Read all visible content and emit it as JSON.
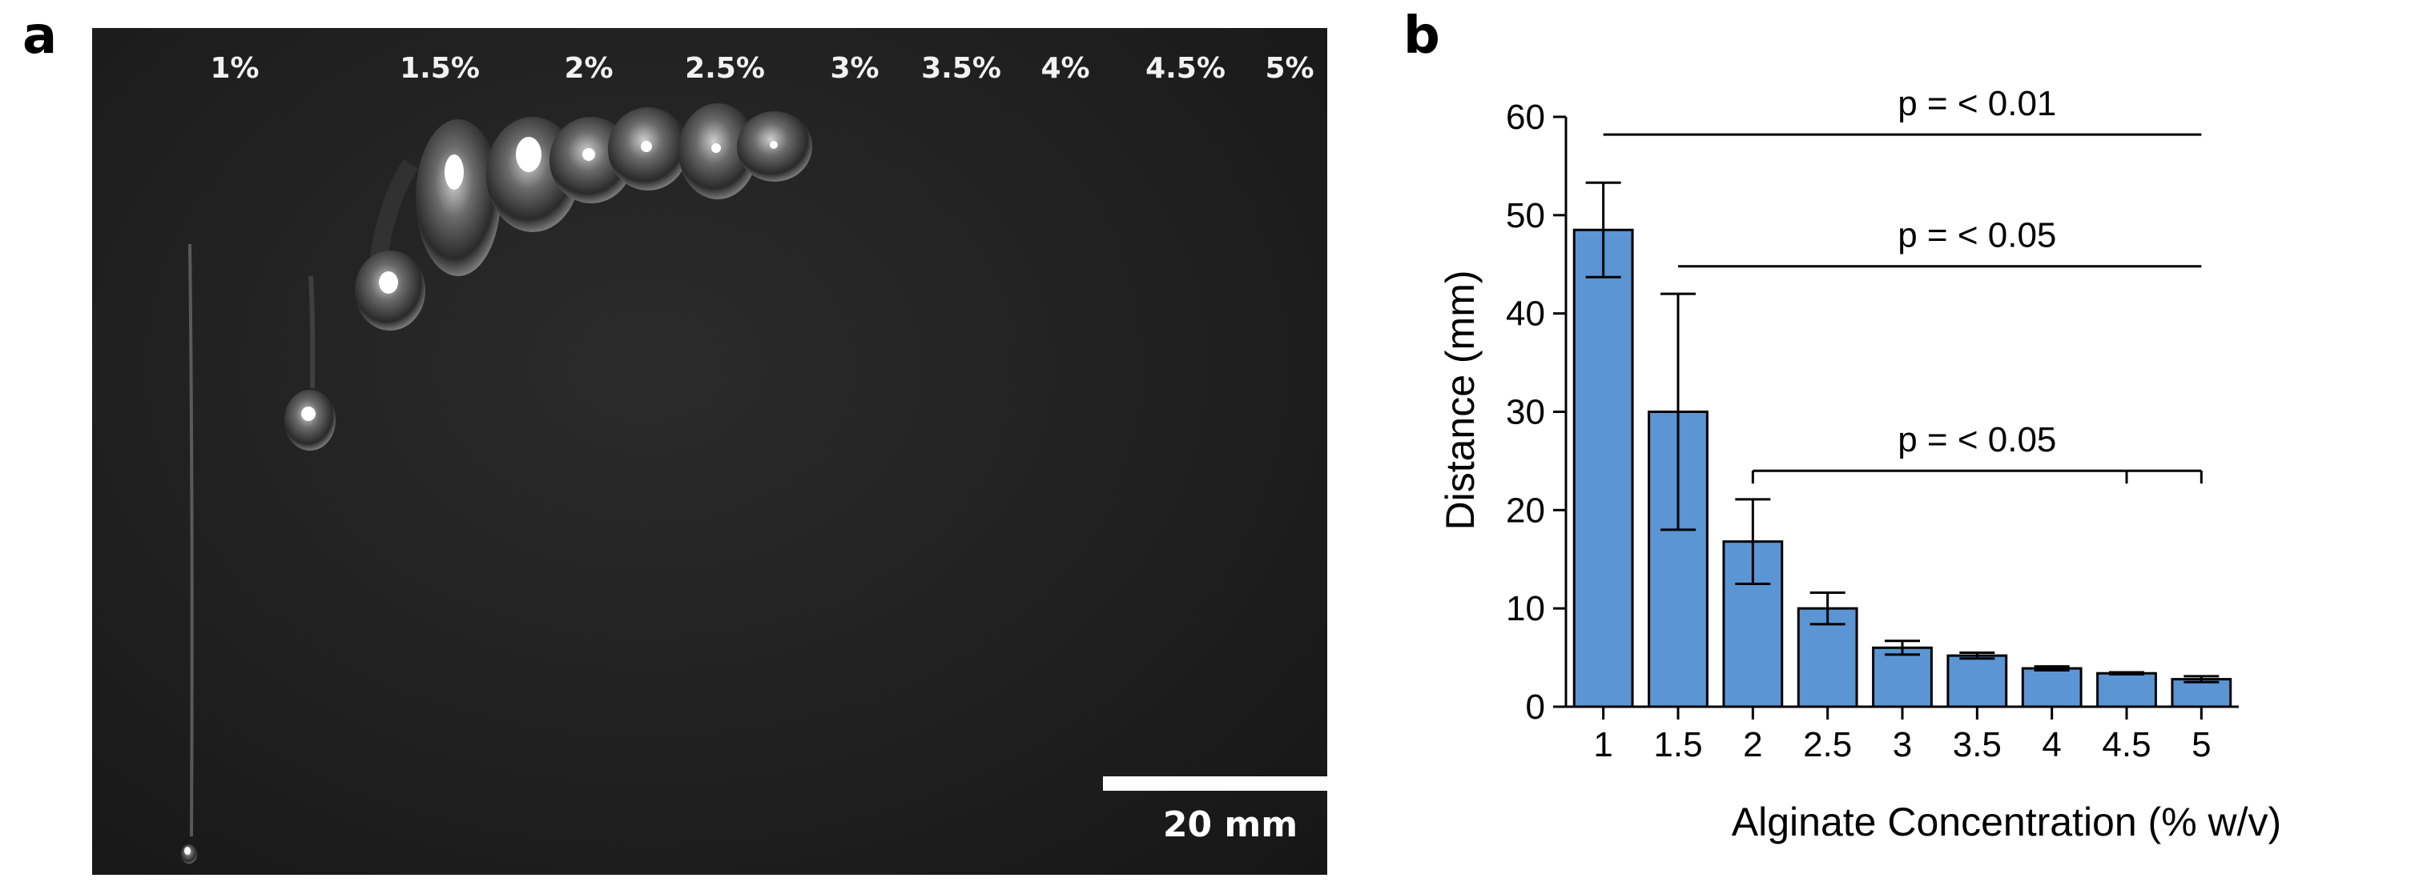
{
  "panel_a": {
    "label": "a",
    "concentration_labels": [
      "1%",
      "1.5%",
      "2%",
      "2.5%",
      "3%",
      "3.5%",
      "4%",
      "4.5%",
      "5%"
    ],
    "scale_bar": {
      "label": "20 mm",
      "length_mm": 20
    }
  },
  "panel_b": {
    "label": "b"
  },
  "chart_data": {
    "type": "bar",
    "categories": [
      "1",
      "1.5",
      "2",
      "2.5",
      "3",
      "3.5",
      "4",
      "4.5",
      "5"
    ],
    "values": [
      48.5,
      30.0,
      16.8,
      10.0,
      6.0,
      5.2,
      3.9,
      3.4,
      2.8
    ],
    "error": [
      4.8,
      12.0,
      4.3,
      1.6,
      0.7,
      0.3,
      0.2,
      0.1,
      0.3
    ],
    "xlabel": "Alginate Concentration (% w/v)",
    "ylabel": "Distance (mm)",
    "ylim": [
      0,
      60
    ],
    "yticks": [
      0,
      10,
      20,
      30,
      40,
      50,
      60
    ],
    "bar_color": "#5b95d3",
    "grid": false,
    "annotations": [
      {
        "text": "p = < 0.01",
        "from": "1",
        "to": "5"
      },
      {
        "text": "p = < 0.05",
        "from": "1.5",
        "to": "5"
      },
      {
        "text": "p = < 0.05",
        "from": "2",
        "to": "5"
      }
    ]
  }
}
